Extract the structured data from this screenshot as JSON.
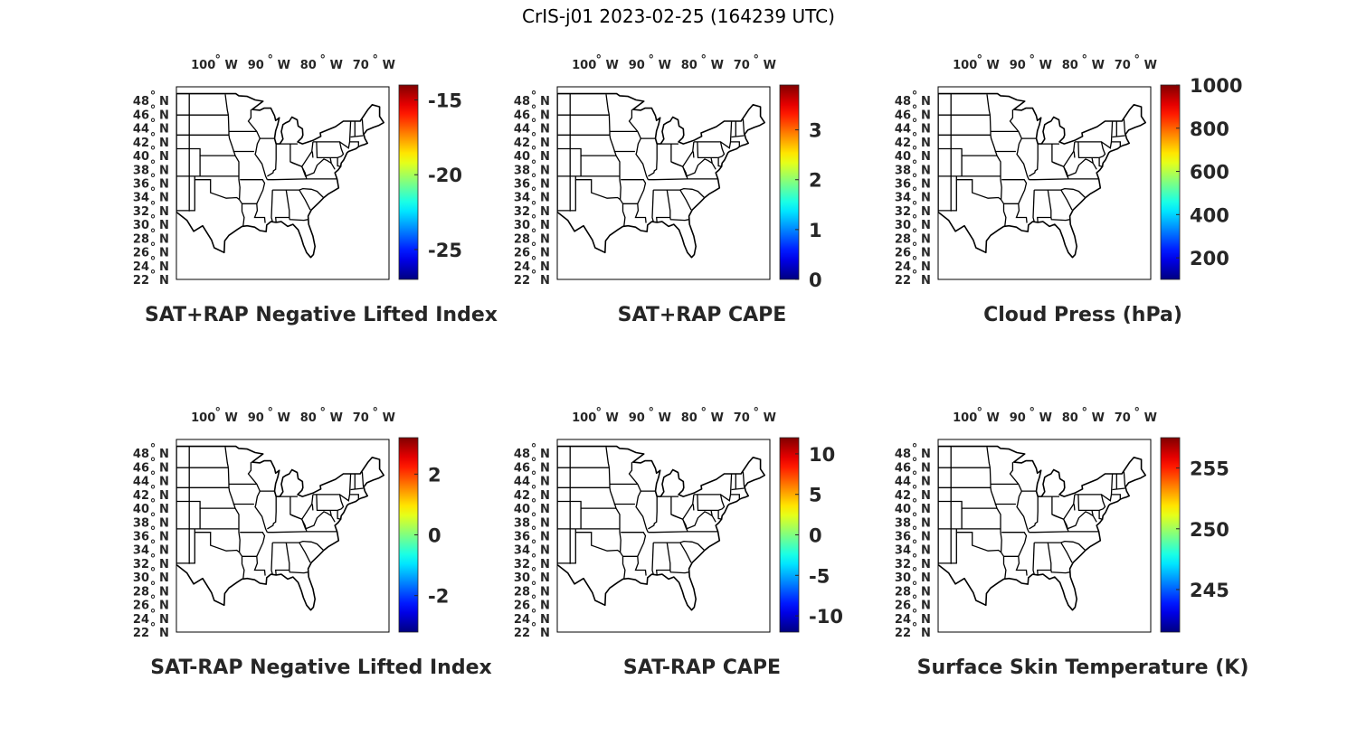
{
  "figure_title": "CrIS-j01 2023-02-25 (164239 UTC)",
  "lon_ticks": [
    "100",
    "90",
    "80",
    "70"
  ],
  "lon_suffix": "W",
  "lat_ticks": [
    "48",
    "46",
    "44",
    "42",
    "40",
    "38",
    "36",
    "34",
    "32",
    "30",
    "28",
    "26",
    "24",
    "22"
  ],
  "lat_suffix": "N",
  "degree_symbol": "°",
  "colormap": "jet",
  "panels": [
    {
      "title": "SAT+RAP Negative Lifted Index",
      "cb_min": -27,
      "cb_max": -14,
      "cb_ticks": [
        -15,
        -20,
        -25
      ],
      "cb_labels": [
        "-15",
        "-20",
        "-25"
      ]
    },
    {
      "title": "SAT+RAP CAPE",
      "cb_min": 0,
      "cb_max": 3.9,
      "cb_ticks": [
        3,
        2,
        1,
        0
      ],
      "cb_labels": [
        "3",
        "2",
        "1",
        "0"
      ]
    },
    {
      "title": "Cloud Press (hPa)",
      "cb_min": 100,
      "cb_max": 1000,
      "cb_ticks": [
        1000,
        800,
        600,
        400,
        200
      ],
      "cb_labels": [
        "1000",
        "800",
        "600",
        "400",
        "200"
      ]
    },
    {
      "title": "SAT-RAP Negative Lifted Index",
      "cb_min": -3.2,
      "cb_max": 3.2,
      "cb_ticks": [
        2,
        0,
        -2
      ],
      "cb_labels": [
        "2",
        "0",
        "-2"
      ]
    },
    {
      "title": "SAT-RAP CAPE",
      "cb_min": -12,
      "cb_max": 12,
      "cb_ticks": [
        10,
        5,
        0,
        -5,
        -10
      ],
      "cb_labels": [
        "10",
        "5",
        "0",
        "-5",
        "-10"
      ]
    },
    {
      "title": "Surface Skin Temperature (K)",
      "cb_min": 241.5,
      "cb_max": 257.5,
      "cb_ticks": [
        255,
        250,
        245
      ],
      "cb_labels": [
        "255",
        "250",
        "245"
      ]
    }
  ]
}
